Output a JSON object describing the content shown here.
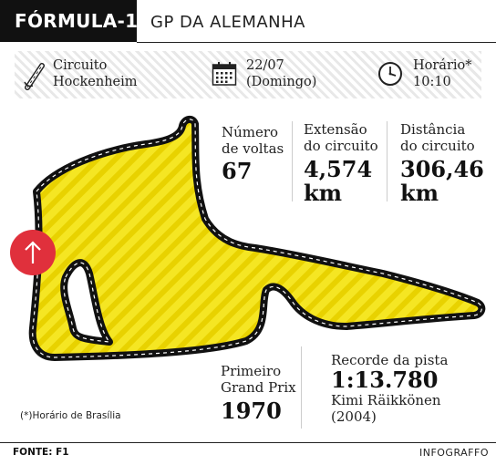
{
  "header": {
    "title": "FÓRMULA-1",
    "subtitle": "GP DA ALEMANHA"
  },
  "info": {
    "circuit": {
      "icon": "circuit-icon",
      "line1": "Circuito",
      "line2": "Hockenheim"
    },
    "date": {
      "icon": "calendar-icon",
      "line1": "22/07",
      "line2": "(Domingo)"
    },
    "time": {
      "icon": "clock-icon",
      "line1": "Horário*",
      "line2": "10:10"
    }
  },
  "stats": {
    "laps": {
      "label1": "Número",
      "label2": "de voltas",
      "value": "67"
    },
    "length": {
      "label1": "Extensão",
      "label2": "do circuito",
      "value1": "4,574",
      "value2": "km"
    },
    "distance": {
      "label1": "Distância",
      "label2": "do circuito",
      "value1": "306,46",
      "value2": "km"
    },
    "first_gp": {
      "label1": "Primeiro",
      "label2": "Grand Prix",
      "value": "1970"
    },
    "record": {
      "label": "Recorde da pista",
      "value": "1:13.780",
      "driver": "Kimi Räikkönen",
      "year": "(2004)"
    }
  },
  "track": {
    "fill_color": "#f5e623",
    "stripe_color": "#e6cf00",
    "outline_color": "#111111",
    "direction_icon": "arrow-up-icon",
    "direction_color": "#e0303c"
  },
  "note": "(*)Horário de Brasília",
  "footer": {
    "source": "FONTE: F1",
    "credit": "INFOGRAFFO"
  }
}
